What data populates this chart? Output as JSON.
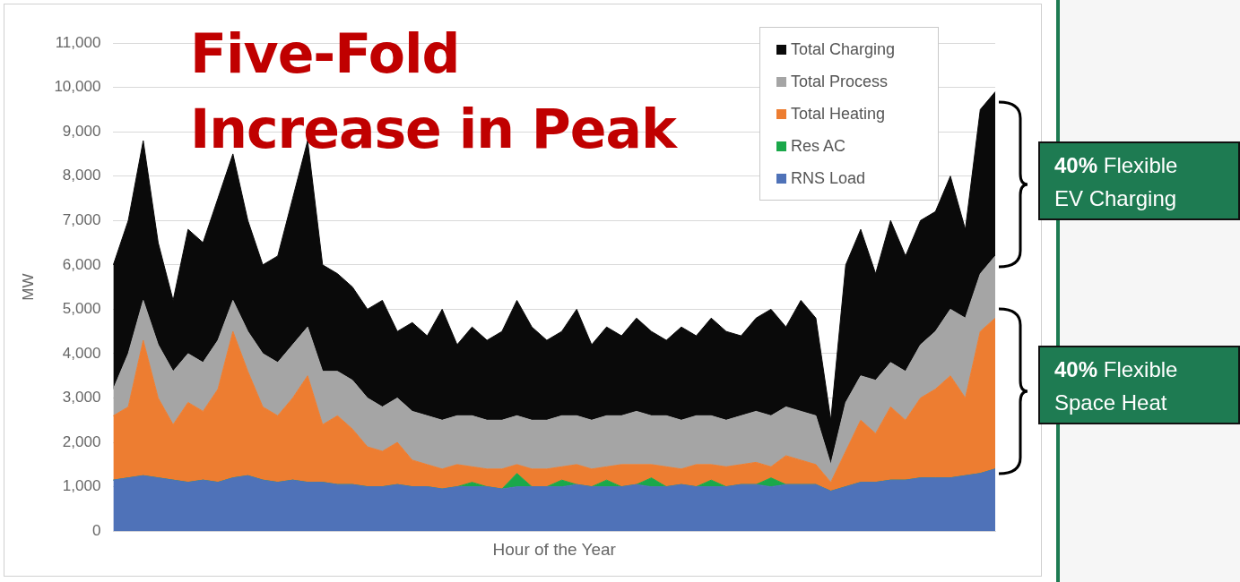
{
  "chart_data": {
    "type": "area",
    "title": "Five-Fold Increase in Peak",
    "xlabel": "Hour of the Year",
    "ylabel": "MW",
    "categories": [
      null,
      null,
      null,
      null,
      null,
      null,
      null,
      null,
      null,
      null,
      null,
      null,
      null,
      null,
      null,
      null,
      null,
      null,
      null,
      null,
      null,
      null,
      null,
      null,
      null,
      null,
      null,
      null,
      null,
      null,
      null,
      null,
      null,
      null,
      null,
      null,
      null,
      null,
      null,
      null,
      null,
      null,
      null,
      null,
      null,
      null,
      null,
      null,
      null,
      null,
      null,
      null,
      null,
      null,
      null,
      null,
      null,
      null,
      null,
      null
    ],
    "stacked": true,
    "series": [
      {
        "name": "RNS Load",
        "color": "#4f72b8",
        "values": [
          1150,
          1200,
          1250,
          1200,
          1150,
          1100,
          1150,
          1100,
          1200,
          1250,
          1150,
          1100,
          1150,
          1100,
          1100,
          1050,
          1050,
          1000,
          1000,
          1050,
          1000,
          1000,
          950,
          1000,
          1000,
          1000,
          950,
          1000,
          1000,
          1000,
          1000,
          1050,
          1000,
          1000,
          1000,
          1050,
          1000,
          1000,
          1050,
          1000,
          1000,
          1000,
          1050,
          1050,
          1000,
          1050,
          1050,
          1050,
          900,
          1000,
          1100,
          1100,
          1150,
          1150,
          1200,
          1200,
          1200,
          1250,
          1300,
          1400
        ]
      },
      {
        "name": "Res AC",
        "color": "#1aa84a",
        "values": [
          0,
          0,
          0,
          0,
          0,
          0,
          0,
          0,
          0,
          0,
          0,
          0,
          0,
          0,
          0,
          0,
          0,
          0,
          0,
          0,
          0,
          0,
          0,
          0,
          100,
          0,
          0,
          300,
          0,
          0,
          150,
          0,
          0,
          150,
          0,
          0,
          200,
          0,
          0,
          0,
          150,
          0,
          0,
          0,
          200,
          0,
          0,
          0,
          0,
          0,
          0,
          0,
          0,
          0,
          0,
          0,
          0,
          0,
          0,
          0
        ]
      },
      {
        "name": "Total Heating",
        "color": "#ed7d31",
        "values": [
          1450,
          1600,
          3050,
          1800,
          1250,
          1800,
          1550,
          2100,
          3300,
          2350,
          1650,
          1500,
          1850,
          2400,
          1300,
          1550,
          1250,
          900,
          800,
          950,
          600,
          500,
          450,
          500,
          350,
          400,
          450,
          200,
          400,
          400,
          300,
          450,
          400,
          300,
          500,
          450,
          300,
          450,
          350,
          500,
          350,
          450,
          450,
          500,
          250,
          650,
          550,
          450,
          200,
          800,
          1400,
          1100,
          1650,
          1350,
          1800,
          2000,
          2300,
          1750,
          3200,
          3400
        ]
      },
      {
        "name": "Total Process",
        "color": "#a5a5a5",
        "values": [
          600,
          1200,
          900,
          1200,
          1200,
          1100,
          1100,
          1100,
          700,
          900,
          1200,
          1200,
          1200,
          1100,
          1200,
          1000,
          1100,
          1100,
          1000,
          1000,
          1100,
          1100,
          1100,
          1100,
          1150,
          1100,
          1100,
          1100,
          1100,
          1100,
          1150,
          1100,
          1100,
          1150,
          1100,
          1200,
          1100,
          1150,
          1100,
          1100,
          1100,
          1050,
          1100,
          1150,
          1150,
          1100,
          1100,
          1100,
          400,
          1100,
          1000,
          1200,
          1000,
          1100,
          1200,
          1300,
          1500,
          1800,
          1300,
          1400
        ]
      },
      {
        "name": "Total Charging",
        "color": "#0a0a0a",
        "values": [
          2800,
          3000,
          3600,
          2300,
          1600,
          2800,
          2700,
          3200,
          3300,
          2500,
          2000,
          2400,
          3300,
          4200,
          2400,
          2200,
          2100,
          2000,
          2400,
          1500,
          2000,
          1800,
          2500,
          1600,
          2000,
          1800,
          2000,
          2600,
          2100,
          1800,
          1900,
          2400,
          1700,
          2000,
          1800,
          2100,
          1900,
          1700,
          2100,
          1800,
          2200,
          2000,
          1800,
          2100,
          2400,
          1800,
          2500,
          2200,
          1000,
          3100,
          3300,
          2400,
          3200,
          2600,
          2800,
          2700,
          3000,
          2000,
          3700,
          3700
        ]
      }
    ],
    "ylim": [
      0,
      11000
    ],
    "yticks": [
      {
        "value": 0,
        "label": "0"
      },
      {
        "value": 1000,
        "label": "1,000"
      },
      {
        "value": 2000,
        "label": "2,000"
      },
      {
        "value": 3000,
        "label": "3,000"
      },
      {
        "value": 4000,
        "label": "4,000"
      },
      {
        "value": 5000,
        "label": "5,000"
      },
      {
        "value": 6000,
        "label": "6,000"
      },
      {
        "value": 7000,
        "label": "7,000"
      },
      {
        "value": 8000,
        "label": "8,000"
      },
      {
        "value": 9000,
        "label": "9,000"
      },
      {
        "value": 10000,
        "label": "10,000"
      },
      {
        "value": 11000,
        "label": "11,000"
      }
    ],
    "grid": "y",
    "legend": "top right",
    "tick_labels": "y",
    "annotations": [
      "40% Flexible EV Charging",
      "40% Flexible Space Heat"
    ]
  }
}
